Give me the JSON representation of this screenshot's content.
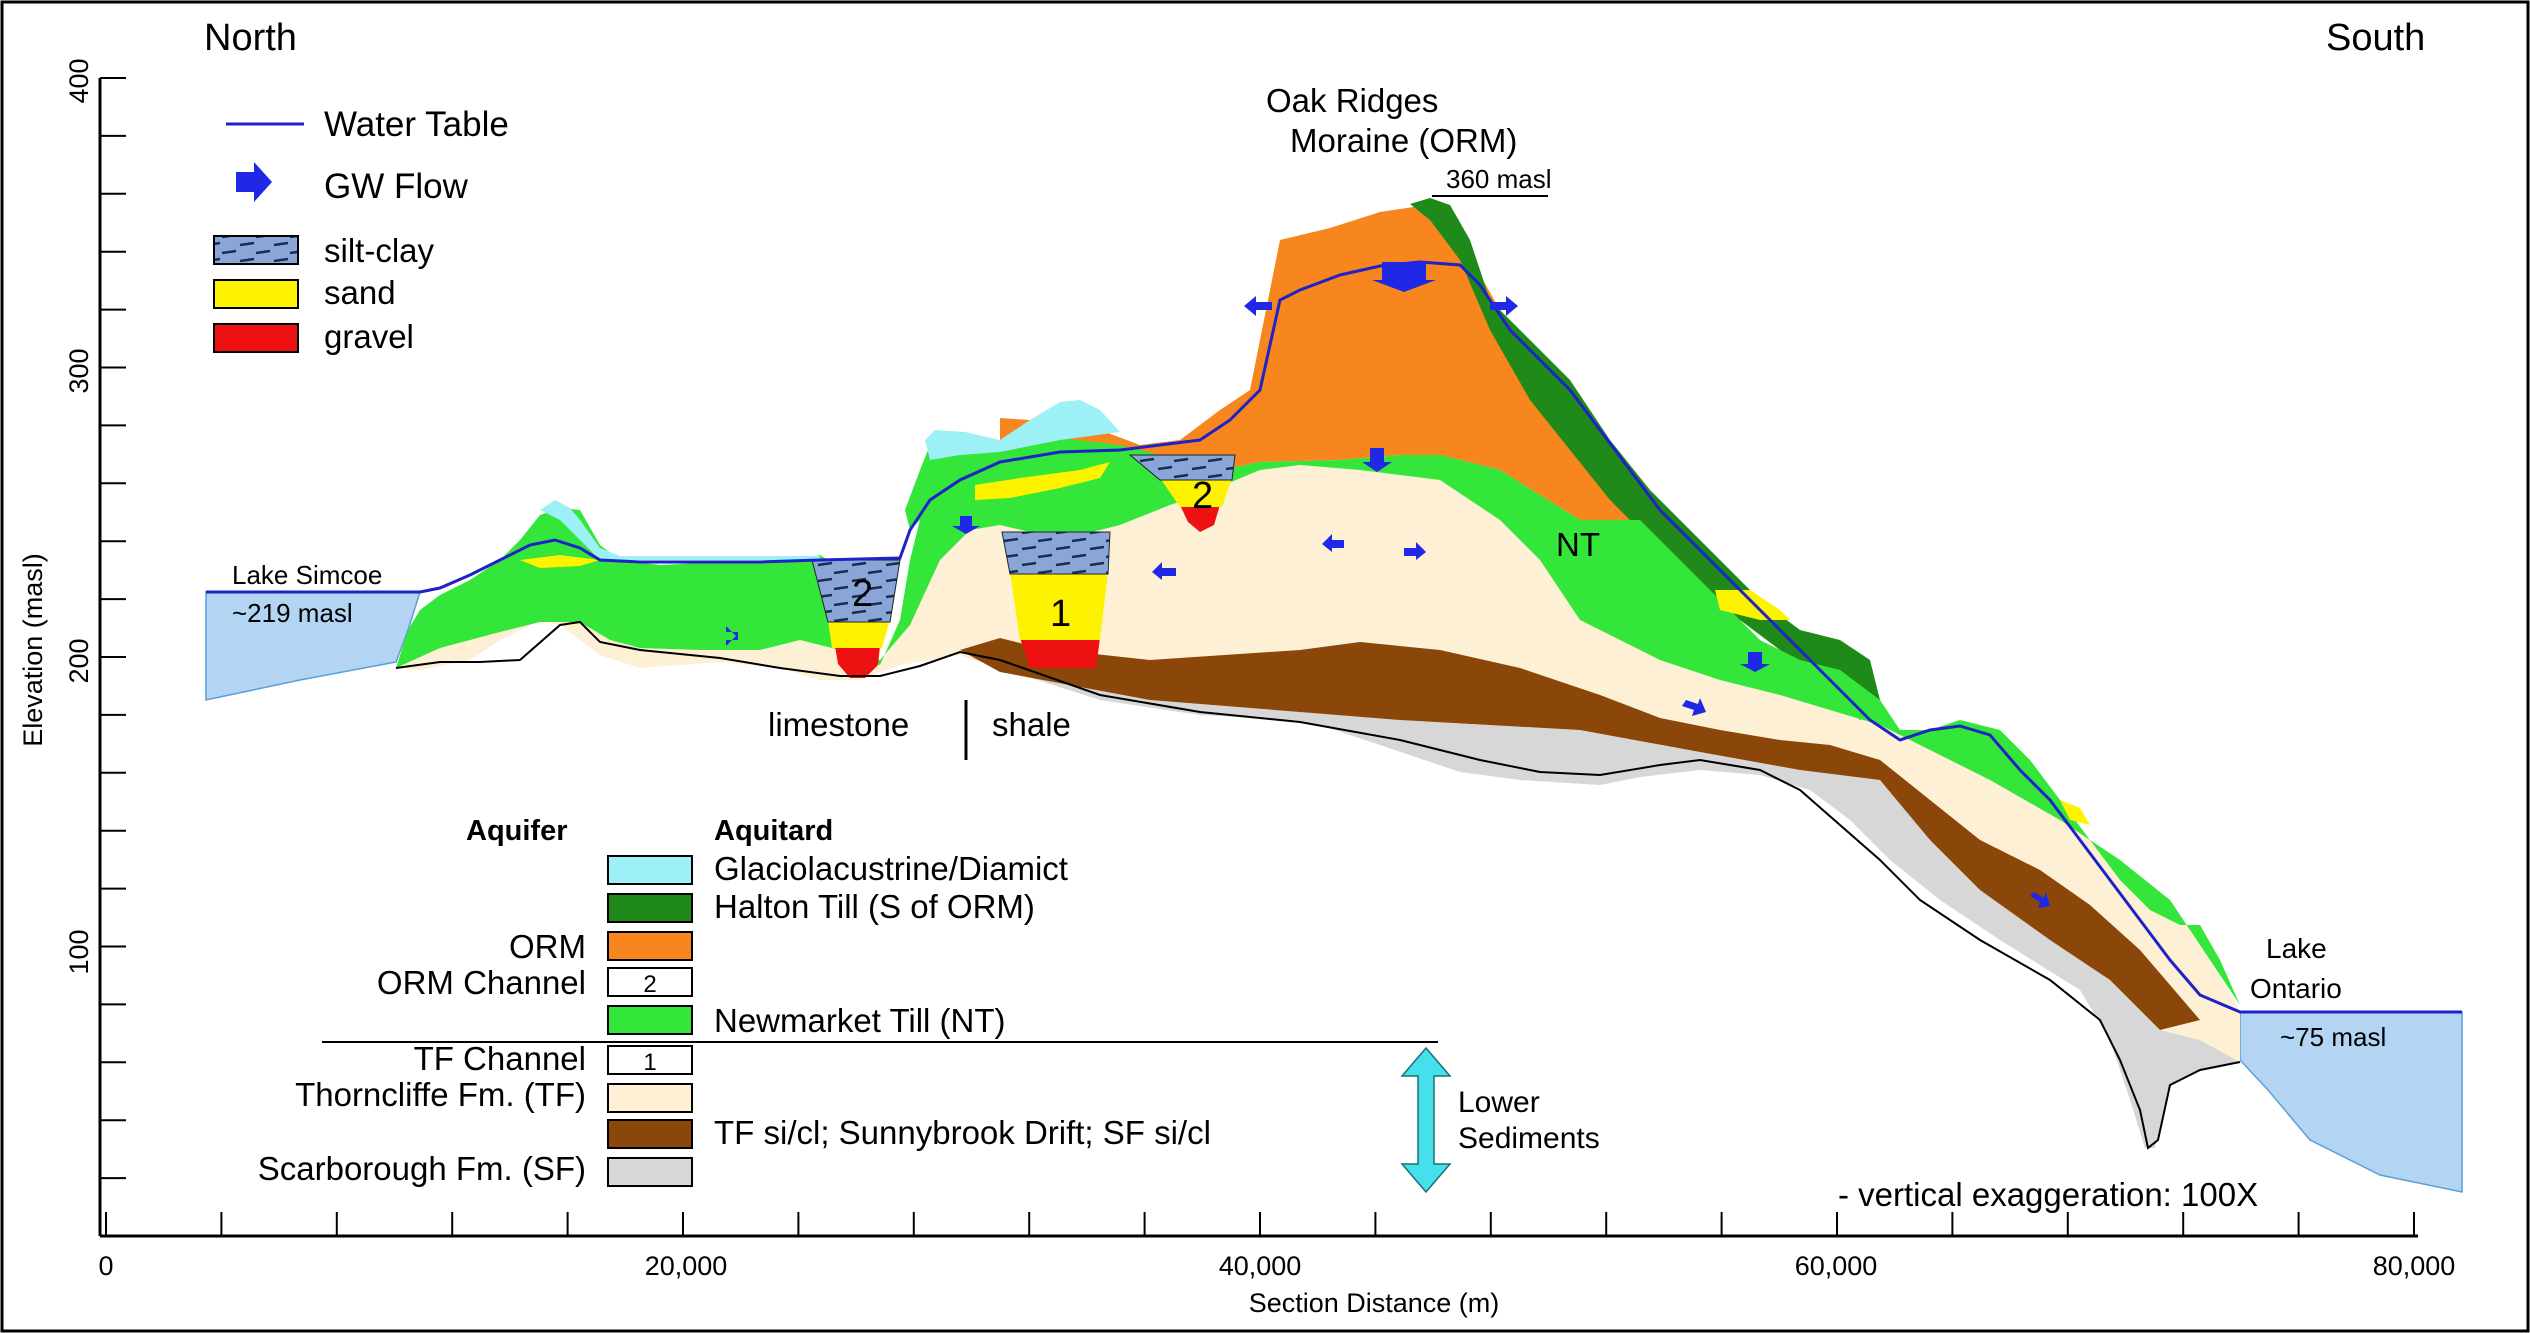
{
  "directions": {
    "north": "North",
    "south": "South"
  },
  "axes": {
    "ylabel": "Elevation (masl)",
    "xlabel": "Section Distance (m)",
    "yticks": [
      "100",
      "200",
      "300",
      "400"
    ],
    "xticks": [
      "0",
      "20,000",
      "40,000",
      "60,000",
      "80,000"
    ]
  },
  "legend_top": {
    "water_table": "Water Table",
    "gw_flow": "GW Flow",
    "silt_clay": "silt-clay",
    "sand": "sand",
    "gravel": "gravel"
  },
  "annotations": {
    "orm_line1": "Oak Ridges",
    "orm_line2": "Moraine (ORM)",
    "orm_elev": "360 masl",
    "lake_simcoe_name": "Lake Simcoe",
    "lake_simcoe_elev": "~219 masl",
    "lake_ontario_name1": "Lake",
    "lake_ontario_name2": "Ontario",
    "lake_ontario_elev": "~75 masl",
    "limestone": "limestone",
    "shale": "shale",
    "nt": "NT",
    "channel_2": "2",
    "channel_1": "1",
    "vertical_exaggeration": "- vertical exaggeration: 100X",
    "lower_sediments_1": "Lower",
    "lower_sediments_2": "Sediments"
  },
  "legend_units": {
    "aquifer_header": "Aquifer",
    "aquitard_header": "Aquitard",
    "glaciolacustrine": "Glaciolacustrine/Diamict",
    "halton": "Halton Till (S of ORM)",
    "orm": "ORM",
    "orm_channel": "ORM Channel",
    "orm_channel_num": "2",
    "newmarket": "Newmarket Till (NT)",
    "tf_channel": "TF Channel",
    "tf_channel_num": "1",
    "thorncliffe": "Thorncliffe Fm. (TF)",
    "tf_sicl": "TF si/cl; Sunnybrook Drift; SF si/cl",
    "scarborough": "Scarborough Fm. (SF)"
  },
  "colors": {
    "water": "#b3d4f2",
    "glaciolacustrine": "#9df0f5",
    "halton": "#1f8a1a",
    "orm": "#f7861f",
    "newmarket": "#35e63a",
    "thorncliffe": "#fdf0d4",
    "tf_sicl": "#8a4709",
    "scarborough": "#d7d7d7",
    "sand": "#fdf200",
    "gravel": "#ee1111",
    "siltclay": "#8aa6d6",
    "water_table": "#1e22c8",
    "flow": "#1e28e6",
    "lower_arrow": "#46e0ea"
  }
}
